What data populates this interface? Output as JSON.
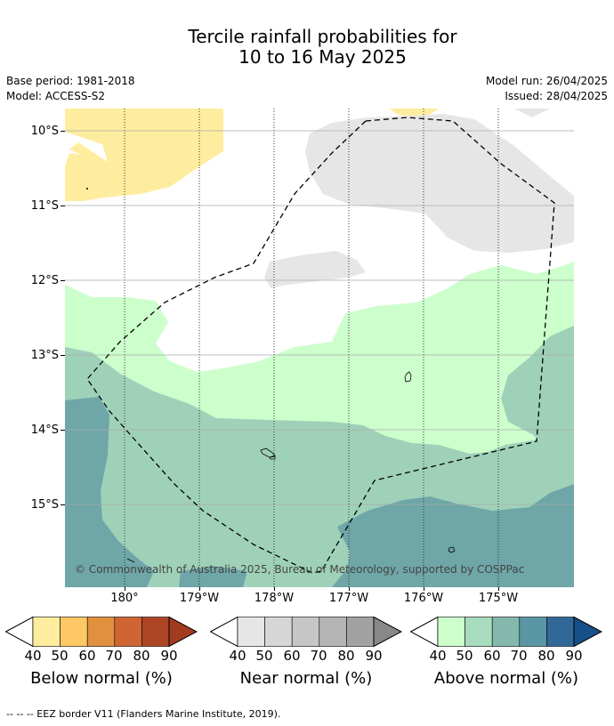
{
  "header": {
    "title_line1": "Tercile rainfall probabilities for",
    "title_line2": "10 to 16 May 2025",
    "base_period": "Base period: 1981-2018",
    "model": "Model: ACCESS-S2",
    "model_run": "Model run: 26/04/2025",
    "issued": "Issued: 28/04/2025"
  },
  "map": {
    "lat_labels": [
      "10°S",
      "11°S",
      "12°S",
      "13°S",
      "14°S",
      "15°S"
    ],
    "lon_labels": [
      "180°",
      "179°W",
      "178°W",
      "177°W",
      "176°W",
      "175°W"
    ],
    "copyright": "© Commonwealth of Australia 2025, Bureau of Meteorology, supported by COSPPac",
    "colors": {
      "below_40": "#ffeda0",
      "near_40": "#e6e6e6",
      "above_40": "#ccffcc",
      "above_50": "#9fd1b9",
      "above_60": "#6fa6a8"
    }
  },
  "legends": [
    {
      "label": "Below normal (%)",
      "ticks": [
        "40",
        "50",
        "60",
        "70",
        "80",
        "90"
      ],
      "colors": [
        "#ffed9f",
        "#fec964",
        "#e1913e",
        "#cf6533",
        "#ad4525",
        "#a33b20"
      ]
    },
    {
      "label": "Near normal (%)",
      "ticks": [
        "40",
        "50",
        "60",
        "70",
        "80",
        "90"
      ],
      "colors": [
        "#e6e6e6",
        "#d6d6d6",
        "#c6c6c6",
        "#b4b4b4",
        "#a2a2a2",
        "#888888"
      ]
    },
    {
      "label": "Above normal (%)",
      "ticks": [
        "40",
        "50",
        "60",
        "70",
        "80",
        "90"
      ],
      "colors": [
        "#ccffcc",
        "#a7dcbe",
        "#84b8ad",
        "#5b96a4",
        "#326897",
        "#174f88"
      ]
    }
  ],
  "footnote": "--  --  -- EEZ border V11 (Flanders Marine Institute, 2019)."
}
